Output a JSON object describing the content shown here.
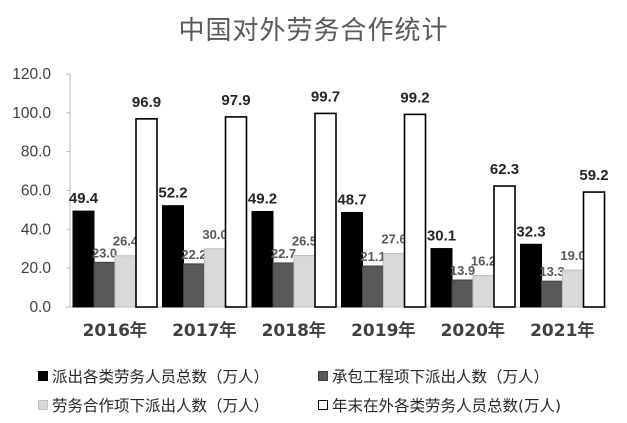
{
  "chart_data": {
    "type": "bar",
    "title": "中国对外劳务合作统计",
    "categories": [
      "2016年",
      "2017年",
      "2018年",
      "2019年",
      "2020年",
      "2021年"
    ],
    "series": [
      {
        "name": "派出各类劳务人员总数（万人）",
        "values": [
          49.4,
          52.2,
          49.2,
          48.7,
          30.1,
          32.3
        ],
        "labels": [
          "49.4",
          "52.2",
          "49.2",
          "48.7",
          "30.1",
          "32.3"
        ],
        "color": "#000000",
        "stroke": "#000000"
      },
      {
        "name": "承包工程项下派出人数（万人）",
        "values": [
          23.0,
          22.2,
          22.7,
          21.1,
          13.9,
          13.3
        ],
        "labels": [
          "23.0",
          "22.2",
          "22.7",
          "21.1",
          "13.9",
          "13.3"
        ],
        "color": "#595959",
        "stroke": "#404040"
      },
      {
        "name": "劳务合作项下派出人数（万人）",
        "values": [
          26.4,
          30.0,
          26.5,
          27.6,
          16.2,
          19.0
        ],
        "labels": [
          "26.4",
          "30.0",
          "26.5",
          "27.6",
          "16.2",
          "19.0"
        ],
        "color": "#d9d9d9",
        "stroke": "#bfbfbf"
      },
      {
        "name": "年末在外各类劳务人员总数(万人)",
        "values": [
          96.9,
          97.9,
          99.7,
          99.2,
          62.3,
          59.2
        ],
        "labels": [
          "96.9",
          "97.9",
          "99.7",
          "99.2",
          "62.3",
          "59.2"
        ],
        "color": "#ffffff",
        "stroke": "#000000"
      }
    ],
    "ylim": [
      0,
      120
    ],
    "yticks": [
      "0.0",
      "20.0",
      "40.0",
      "60.0",
      "80.0",
      "100.0",
      "120.0"
    ],
    "grid": false,
    "legend_position": "bottom"
  }
}
